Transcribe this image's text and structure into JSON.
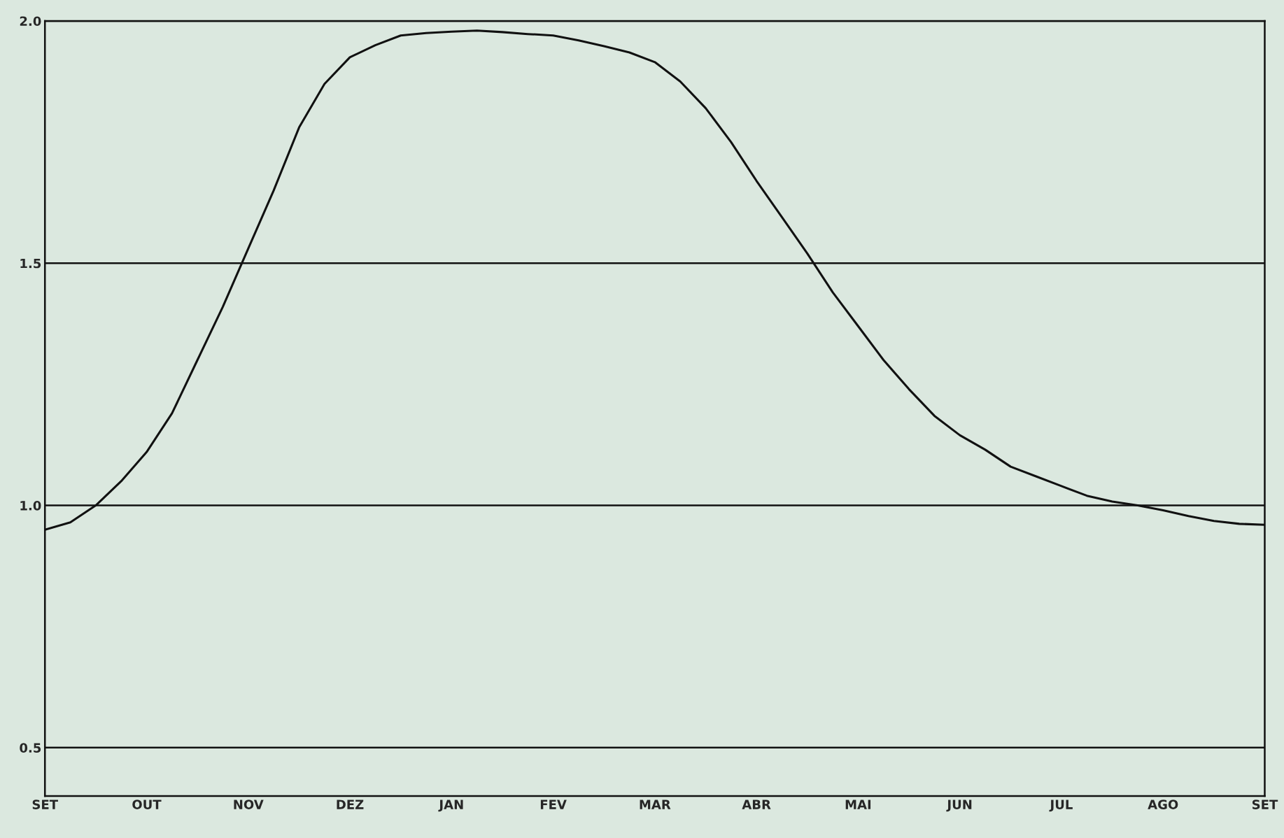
{
  "chart_data": {
    "type": "line",
    "categories": [
      "SET",
      null,
      null,
      null,
      "OUT",
      null,
      null,
      null,
      "NOV",
      null,
      null,
      null,
      "DEZ",
      null,
      null,
      null,
      "JAN",
      null,
      null,
      null,
      "FEV",
      null,
      null,
      null,
      "MAR",
      null,
      null,
      null,
      "ABR",
      null,
      null,
      null,
      "MAI",
      null,
      null,
      null,
      "JUN",
      null,
      null,
      null,
      "JUL",
      null,
      null,
      null,
      "AGO",
      null,
      null,
      null,
      "SET"
    ],
    "series": [
      {
        "color": "#111111",
        "values": [
          0.95,
          0.965,
          1.0,
          1.05,
          1.11,
          1.19,
          1.3,
          1.41,
          1.53,
          1.65,
          1.78,
          1.87,
          1.925,
          1.95,
          1.97,
          1.975,
          1.978,
          1.98,
          1.977,
          1.973,
          1.97,
          1.96,
          1.948,
          1.935,
          1.915,
          1.875,
          1.82,
          1.75,
          1.67,
          1.595,
          1.52,
          1.44,
          1.37,
          1.3,
          1.24,
          1.185,
          1.145,
          1.115,
          1.08,
          1.06,
          1.04,
          1.02,
          1.008,
          1.0,
          0.99,
          0.978,
          0.968,
          0.962,
          0.96
        ]
      }
    ],
    "ylim": [
      0.4,
      2.0
    ],
    "yticks": [
      {
        "value": 0.5,
        "label": "0.5"
      },
      {
        "value": 1.0,
        "label": "1.0"
      },
      {
        "value": 1.5,
        "label": "1.5"
      },
      {
        "value": 2.0,
        "label": "2.0"
      }
    ],
    "grid": "y",
    "marker": "none",
    "line_style": "solid"
  }
}
